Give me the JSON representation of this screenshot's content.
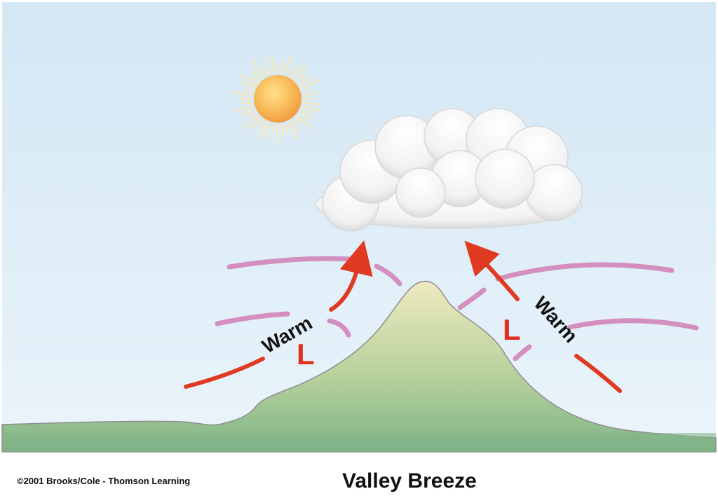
{
  "diagram": {
    "caption": "Valley Breeze",
    "copyright": "©2001 Brooks/Cole - Thomson Learning",
    "labels": {
      "warm_left": "Warm",
      "warm_right": "Warm",
      "low_left": "L",
      "low_right": "L"
    },
    "icons": [
      "sun-icon",
      "cloud-icon",
      "mountain-icon"
    ],
    "colors": {
      "sky_top": "#d3e7f4",
      "sky_bottom": "#eaf4fb",
      "mountain_top": "#eeeac0",
      "mountain_bottom": "#7fb487",
      "ground": "#7fb387",
      "wind_arrow": "#e03a23",
      "isobar": "#d48fc0",
      "sun": "#f5a94a"
    }
  }
}
